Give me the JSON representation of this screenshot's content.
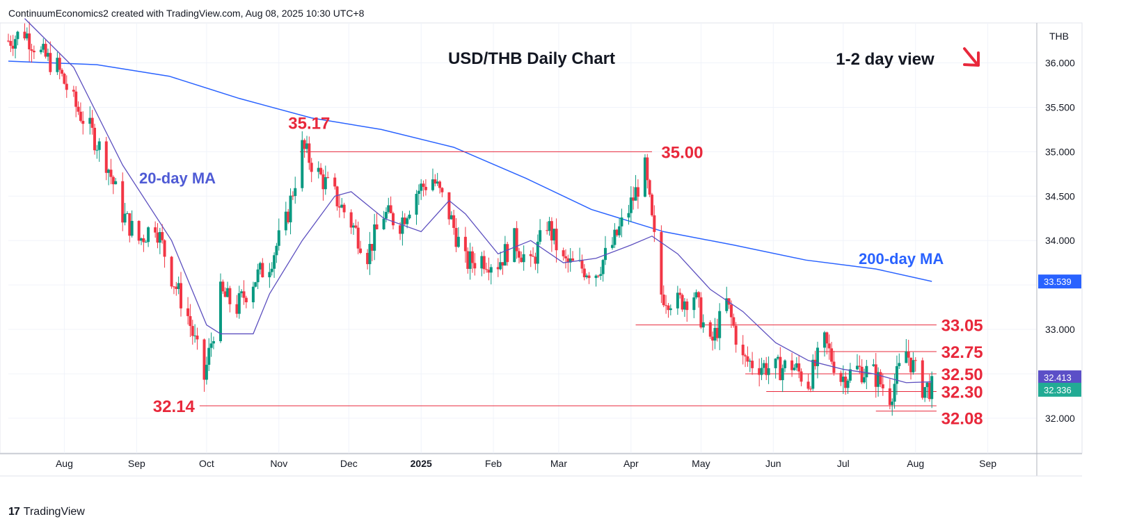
{
  "header": {
    "attribution": "ContinuumEconomics2 created with TradingView.com, Aug 08, 2025 10:30 UTC+8"
  },
  "footer": {
    "logo_mark": "17",
    "brand": "TradingView"
  },
  "chart_data": {
    "type": "candlestick",
    "title": "USD/THB Daily Chart",
    "view_label": "1-2 day view",
    "view_icon": "down-right-arrow-icon",
    "currency": "THB",
    "ylim": [
      31.6,
      36.45
    ],
    "y_ticks": [
      "36.000",
      "35.500",
      "35.000",
      "34.500",
      "34.000",
      "33.500",
      "33.000",
      "32.500",
      "32.000"
    ],
    "x_months": [
      {
        "label": "Aug",
        "date": "2024-08-01"
      },
      {
        "label": "Sep",
        "date": "2024-09-01"
      },
      {
        "label": "Oct",
        "date": "2024-10-01"
      },
      {
        "label": "Nov",
        "date": "2024-11-01"
      },
      {
        "label": "Dec",
        "date": "2024-12-01"
      },
      {
        "label": "2025",
        "date": "2025-01-01"
      },
      {
        "label": "Feb",
        "date": "2025-02-01"
      },
      {
        "label": "Mar",
        "date": "2025-03-01"
      },
      {
        "label": "Apr",
        "date": "2025-04-01"
      },
      {
        "label": "May",
        "date": "2025-05-01"
      },
      {
        "label": "Jun",
        "date": "2025-06-01"
      },
      {
        "label": "Jul",
        "date": "2025-07-01"
      },
      {
        "label": "Aug",
        "date": "2025-08-01"
      },
      {
        "label": "Sep",
        "date": "2025-09-01"
      }
    ],
    "x_range": [
      "2024-07-08",
      "2025-09-22"
    ],
    "price_path": [
      [
        "2024-07-08",
        36.25
      ],
      [
        "2024-07-15",
        36.35
      ],
      [
        "2024-07-22",
        36.1
      ],
      [
        "2024-07-29",
        35.95
      ],
      [
        "2024-08-05",
        35.55
      ],
      [
        "2024-08-12",
        35.25
      ],
      [
        "2024-08-19",
        34.9
      ],
      [
        "2024-08-26",
        34.3
      ],
      [
        "2024-09-02",
        34.0
      ],
      [
        "2024-09-09",
        34.2
      ],
      [
        "2024-09-16",
        33.6
      ],
      [
        "2024-09-23",
        33.15
      ],
      [
        "2024-09-30",
        32.45
      ],
      [
        "2024-10-07",
        33.4
      ],
      [
        "2024-10-14",
        33.25
      ],
      [
        "2024-10-21",
        33.55
      ],
      [
        "2024-10-28",
        33.75
      ],
      [
        "2024-11-04",
        34.2
      ],
      [
        "2024-11-11",
        35.05
      ],
      [
        "2024-11-18",
        34.75
      ],
      [
        "2024-11-25",
        34.5
      ],
      [
        "2024-12-02",
        34.2
      ],
      [
        "2024-12-09",
        33.85
      ],
      [
        "2024-12-16",
        34.3
      ],
      [
        "2024-12-23",
        34.2
      ],
      [
        "2024-12-30",
        34.55
      ],
      [
        "2025-01-06",
        34.7
      ],
      [
        "2025-01-13",
        34.3
      ],
      [
        "2025-01-20",
        33.75
      ],
      [
        "2025-01-27",
        33.8
      ],
      [
        "2025-02-03",
        33.75
      ],
      [
        "2025-02-10",
        34.0
      ],
      [
        "2025-02-17",
        33.7
      ],
      [
        "2025-02-24",
        34.2
      ],
      [
        "2025-03-03",
        33.75
      ],
      [
        "2025-03-10",
        33.7
      ],
      [
        "2025-03-17",
        33.65
      ],
      [
        "2025-03-24",
        33.95
      ],
      [
        "2025-03-31",
        34.35
      ],
      [
        "2025-04-07",
        34.8
      ],
      [
        "2025-04-14",
        33.4
      ],
      [
        "2025-04-21",
        33.3
      ],
      [
        "2025-04-28",
        33.4
      ],
      [
        "2025-05-05",
        32.8
      ],
      [
        "2025-05-12",
        33.3
      ],
      [
        "2025-05-19",
        32.65
      ],
      [
        "2025-05-26",
        32.6
      ],
      [
        "2025-06-02",
        32.55
      ],
      [
        "2025-06-09",
        32.6
      ],
      [
        "2025-06-16",
        32.4
      ],
      [
        "2025-06-23",
        32.85
      ],
      [
        "2025-06-30",
        32.45
      ],
      [
        "2025-07-07",
        32.55
      ],
      [
        "2025-07-14",
        32.5
      ],
      [
        "2025-07-21",
        32.25
      ],
      [
        "2025-07-28",
        32.75
      ],
      [
        "2025-08-04",
        32.35
      ],
      [
        "2025-08-08",
        32.34
      ]
    ],
    "ma20": [
      [
        "2024-07-15",
        36.5
      ],
      [
        "2024-08-05",
        35.95
      ],
      [
        "2024-08-26",
        34.85
      ],
      [
        "2024-09-16",
        34.0
      ],
      [
        "2024-10-01",
        33.05
      ],
      [
        "2024-10-07",
        32.95
      ],
      [
        "2024-10-21",
        32.95
      ],
      [
        "2024-10-28",
        33.4
      ],
      [
        "2024-11-11",
        34.0
      ],
      [
        "2024-11-25",
        34.5
      ],
      [
        "2024-12-02",
        34.55
      ],
      [
        "2024-12-16",
        34.25
      ],
      [
        "2025-01-01",
        34.1
      ],
      [
        "2025-01-13",
        34.45
      ],
      [
        "2025-01-20",
        34.3
      ],
      [
        "2025-02-03",
        33.85
      ],
      [
        "2025-02-17",
        34.0
      ],
      [
        "2025-03-03",
        33.75
      ],
      [
        "2025-03-17",
        33.8
      ],
      [
        "2025-04-01",
        33.95
      ],
      [
        "2025-04-10",
        34.05
      ],
      [
        "2025-04-21",
        33.85
      ],
      [
        "2025-05-05",
        33.45
      ],
      [
        "2025-05-19",
        33.2
      ],
      [
        "2025-06-02",
        32.85
      ],
      [
        "2025-06-16",
        32.65
      ],
      [
        "2025-07-01",
        32.55
      ],
      [
        "2025-07-14",
        32.5
      ],
      [
        "2025-07-28",
        32.4
      ],
      [
        "2025-08-08",
        32.41
      ]
    ],
    "ma200": [
      [
        "2024-07-08",
        36.02
      ],
      [
        "2024-08-15",
        35.98
      ],
      [
        "2024-09-15",
        35.85
      ],
      [
        "2024-10-15",
        35.6
      ],
      [
        "2024-11-15",
        35.38
      ],
      [
        "2024-12-15",
        35.25
      ],
      [
        "2025-01-15",
        35.05
      ],
      [
        "2025-02-15",
        34.7
      ],
      [
        "2025-03-15",
        34.35
      ],
      [
        "2025-04-15",
        34.1
      ],
      [
        "2025-05-15",
        33.95
      ],
      [
        "2025-06-15",
        33.78
      ],
      [
        "2025-07-15",
        33.68
      ],
      [
        "2025-08-08",
        33.54
      ]
    ],
    "levels": [
      {
        "value": 35.0,
        "label": "35.00",
        "from": "2024-11-10",
        "to": "2025-04-10",
        "label_date": "2025-04-14",
        "dy": 0
      },
      {
        "value": 33.05,
        "label": "33.05",
        "from": "2025-04-03",
        "to": "2025-08-10",
        "label_date": "2025-08-12",
        "dy": 0
      },
      {
        "value": 32.75,
        "label": "32.75",
        "from": "2025-06-20",
        "to": "2025-08-10",
        "label_date": "2025-08-12",
        "dy": 0
      },
      {
        "value": 32.5,
        "label": "32.50",
        "from": "2025-05-20",
        "to": "2025-08-10",
        "label_date": "2025-08-12",
        "dy": 0
      },
      {
        "value": 32.3,
        "label": "32.30",
        "from": "2025-05-29",
        "to": "2025-08-10",
        "label_date": "2025-08-12",
        "dy": 0
      },
      {
        "value": 32.14,
        "label": "32.14",
        "from": "2024-09-28",
        "to": "2025-08-10",
        "label_date": "2024-09-08",
        "dy": 0
      },
      {
        "value": 32.08,
        "label": "32.08",
        "from": "2025-07-15",
        "to": "2025-08-10",
        "label_date": "2025-08-12",
        "dy": 10
      }
    ],
    "peak_label": {
      "value": "35.17",
      "date": "2024-11-14",
      "price": 35.17
    },
    "ma20_label": "20-day MA",
    "ma200_label": "200-day MA",
    "last_ma_value": "32.413",
    "last_price": "32.336",
    "last_ma200": "33.539",
    "colors": {
      "up": "#089981",
      "down": "#f23645",
      "ma20": "#5c4fbf",
      "ma200": "#2962ff",
      "levels": "#e8283b",
      "price_box": "#22ab94",
      "ma_box": "#5b4fc7",
      "ma200_box": "#2962ff"
    }
  }
}
